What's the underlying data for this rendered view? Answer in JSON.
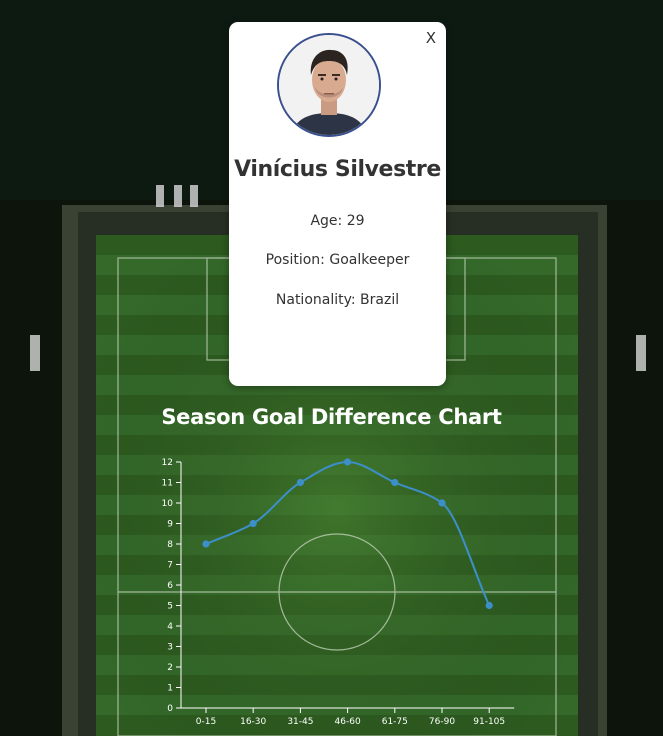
{
  "player": {
    "close_label": "X",
    "name": "Vinícius Silvestre",
    "age": "Age: 29",
    "position": "Position: Goalkeeper",
    "nationality": "Nationality: Brazil",
    "avatar_icon": "player-avatar",
    "avatar_border_color": "#3a4f8e"
  },
  "chart_title": "Season Goal Difference Chart",
  "chart_data": {
    "type": "line",
    "title": "Season Goal Difference Chart",
    "categories": [
      "0-15",
      "16-30",
      "31-45",
      "46-60",
      "61-75",
      "76-90",
      "91-105"
    ],
    "series": [
      {
        "values": [
          8,
          9,
          11,
          12,
          11,
          10,
          5
        ]
      }
    ],
    "ylim": [
      0,
      12
    ],
    "yticks": [
      0,
      1,
      2,
      3,
      4,
      5,
      6,
      7,
      8,
      9,
      10,
      11,
      12
    ],
    "xlabel": "",
    "ylabel": "",
    "grid": false,
    "line_color": "#3d8fc9",
    "curve": "smooth"
  }
}
